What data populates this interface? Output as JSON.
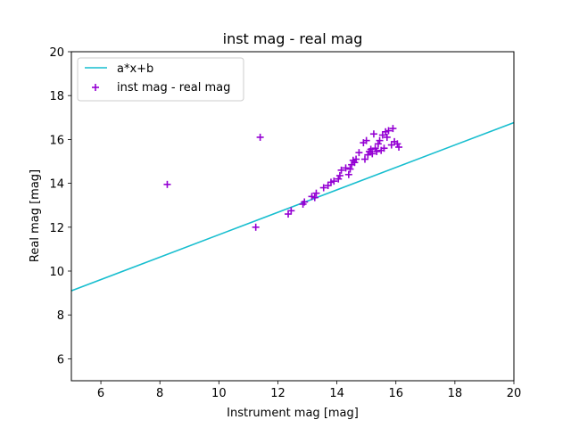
{
  "chart_data": {
    "type": "scatter",
    "title": "inst mag - real mag",
    "xlabel": "Instrument mag [mag]",
    "ylabel": "Real mag [mag]",
    "xlim": [
      5,
      20
    ],
    "ylim": [
      5,
      20
    ],
    "xticks": [
      6,
      8,
      10,
      12,
      14,
      16,
      18,
      20
    ],
    "yticks": [
      6,
      8,
      10,
      12,
      14,
      16,
      18,
      20
    ],
    "grid": false,
    "legend_position": "top-left",
    "line": {
      "name": "a*x+b",
      "color": "#17becf",
      "points": [
        [
          5,
          9.1
        ],
        [
          20,
          16.77
        ]
      ]
    },
    "scatter": {
      "name": "inst mag - real mag",
      "color": "#9400d3",
      "marker": "+",
      "points": [
        [
          8.25,
          13.95
        ],
        [
          11.25,
          12.0
        ],
        [
          11.4,
          16.1
        ],
        [
          12.35,
          12.6
        ],
        [
          12.45,
          12.75
        ],
        [
          12.85,
          13.05
        ],
        [
          12.9,
          13.15
        ],
        [
          13.15,
          13.4
        ],
        [
          13.25,
          13.35
        ],
        [
          13.3,
          13.55
        ],
        [
          13.55,
          13.8
        ],
        [
          13.7,
          13.9
        ],
        [
          13.8,
          14.05
        ],
        [
          13.9,
          14.1
        ],
        [
          14.05,
          14.2
        ],
        [
          14.1,
          14.35
        ],
        [
          14.15,
          14.6
        ],
        [
          14.3,
          14.7
        ],
        [
          14.4,
          14.4
        ],
        [
          14.45,
          14.65
        ],
        [
          14.5,
          14.85
        ],
        [
          14.55,
          15.05
        ],
        [
          14.6,
          14.95
        ],
        [
          14.65,
          15.1
        ],
        [
          14.75,
          15.4
        ],
        [
          14.9,
          15.85
        ],
        [
          14.95,
          15.1
        ],
        [
          15.0,
          15.95
        ],
        [
          15.05,
          15.3
        ],
        [
          15.1,
          15.45
        ],
        [
          15.15,
          15.55
        ],
        [
          15.2,
          15.35
        ],
        [
          15.25,
          16.25
        ],
        [
          15.3,
          15.6
        ],
        [
          15.35,
          15.45
        ],
        [
          15.4,
          15.8
        ],
        [
          15.45,
          15.95
        ],
        [
          15.5,
          15.5
        ],
        [
          15.55,
          16.2
        ],
        [
          15.6,
          15.6
        ],
        [
          15.65,
          16.35
        ],
        [
          15.7,
          16.1
        ],
        [
          15.75,
          16.4
        ],
        [
          15.85,
          15.75
        ],
        [
          15.9,
          16.5
        ],
        [
          15.95,
          15.9
        ],
        [
          16.05,
          15.8
        ],
        [
          16.1,
          15.65
        ]
      ]
    }
  }
}
